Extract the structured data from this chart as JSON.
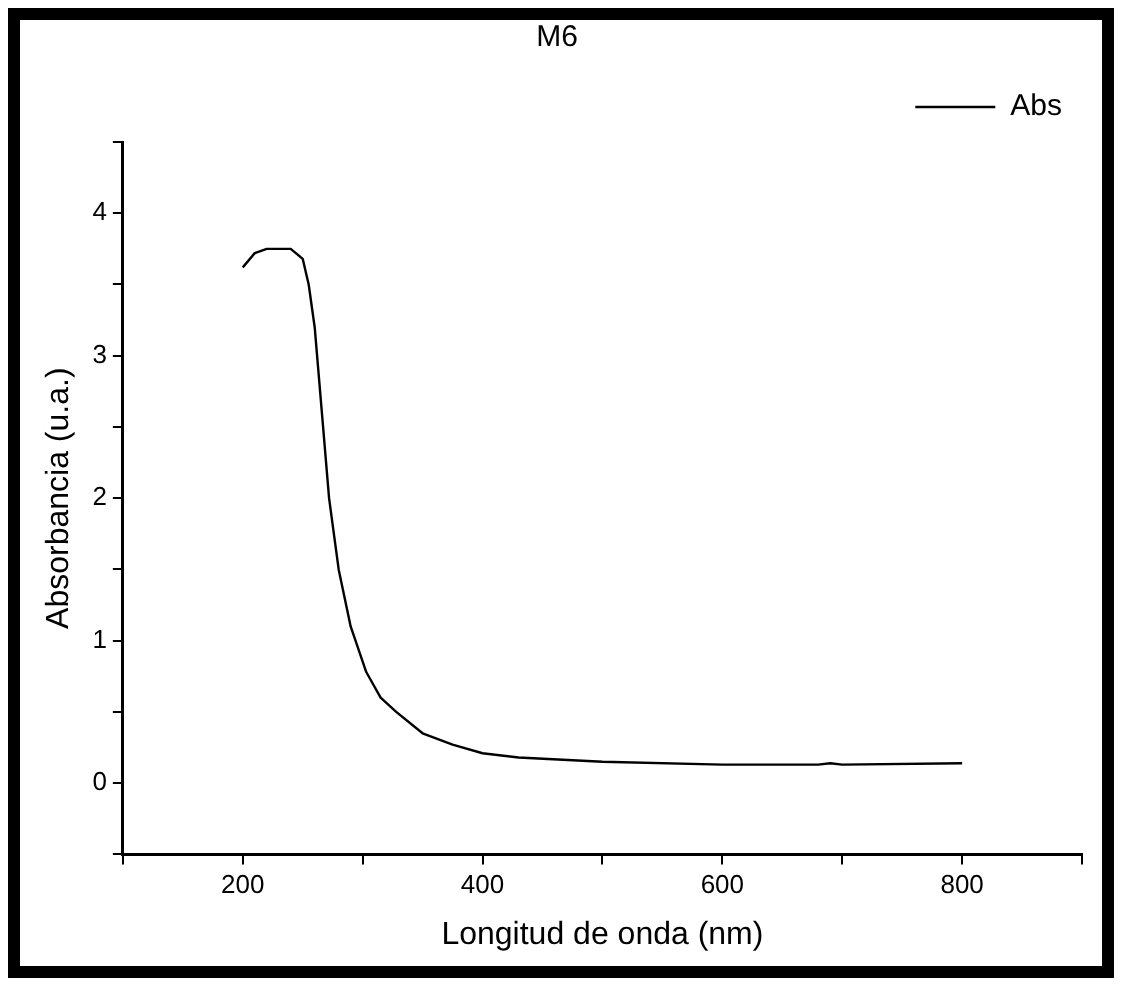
{
  "chart_data": {
    "type": "line",
    "title": "M6",
    "xlabel": "Longitud de onda (nm)",
    "ylabel": "Absorbancia (u.a.)",
    "x": [
      200,
      210,
      220,
      240,
      250,
      255,
      260,
      267,
      272,
      280,
      290,
      303,
      315,
      328,
      350,
      375,
      400,
      430,
      500,
      600,
      680,
      690,
      700,
      800
    ],
    "series": [
      {
        "name": "Abs",
        "color": "#000000",
        "values": [
          3.62,
          3.72,
          3.75,
          3.75,
          3.68,
          3.5,
          3.2,
          2.5,
          2.0,
          1.5,
          1.1,
          0.78,
          0.6,
          0.5,
          0.35,
          0.27,
          0.21,
          0.18,
          0.15,
          0.13,
          0.13,
          0.14,
          0.13,
          0.14
        ]
      }
    ],
    "xlim": [
      100,
      900
    ],
    "xticks": [
      {
        "value": 100,
        "label": null
      },
      200,
      {
        "value": 300,
        "label": null
      },
      400,
      {
        "value": 500,
        "label": null
      },
      600,
      {
        "value": 700,
        "label": null
      },
      800,
      {
        "value": 900,
        "label": null
      }
    ],
    "ylim": [
      -0.5,
      4.5
    ],
    "yticks": [
      {
        "value": -0.5,
        "label": null
      },
      0,
      {
        "value": 0.5,
        "label": null
      },
      1,
      {
        "value": 1.5,
        "label": null
      },
      2,
      {
        "value": 2.5,
        "label": null
      },
      3,
      {
        "value": 3.5,
        "label": null
      },
      4,
      {
        "value": 4.5,
        "label": null
      }
    ],
    "grid": false,
    "legend": "top right",
    "marker": "none",
    "line_style": "solid"
  }
}
